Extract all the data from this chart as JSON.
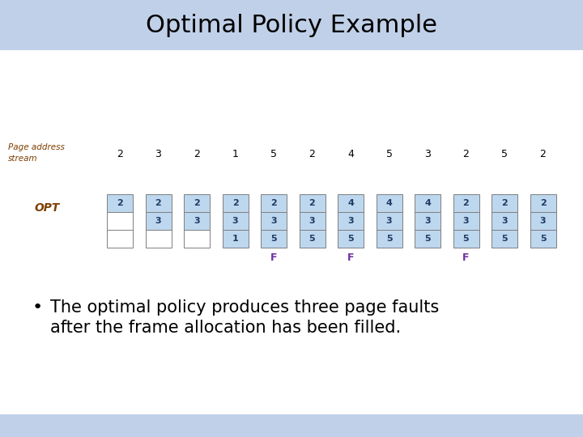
{
  "title": "Optimal Policy Example",
  "title_fontsize": 22,
  "title_color": "#000000",
  "bg_top_color": "#c0d0e8",
  "bg_bottom_color": "#c0d0e8",
  "label_page_address": "Page address",
  "label_stream": "stream",
  "label_opt": "OPT",
  "page_stream": [
    2,
    3,
    2,
    1,
    5,
    2,
    4,
    5,
    3,
    2,
    5,
    2
  ],
  "frames": [
    [
      "2",
      "",
      ""
    ],
    [
      "2",
      "3",
      ""
    ],
    [
      "2",
      "3",
      ""
    ],
    [
      "2",
      "3",
      "1"
    ],
    [
      "2",
      "3",
      "5"
    ],
    [
      "2",
      "3",
      "5"
    ],
    [
      "4",
      "3",
      "5"
    ],
    [
      "4",
      "3",
      "5"
    ],
    [
      "4",
      "3",
      "5"
    ],
    [
      "2",
      "3",
      "5"
    ],
    [
      "2",
      "3",
      "5"
    ],
    [
      "2",
      "3",
      "5"
    ]
  ],
  "fault_cols": [
    4,
    6,
    9
  ],
  "fault_label": "F",
  "fault_color": "#7030a0",
  "cell_fill_color": "#bdd7ee",
  "cell_empty_color": "#ffffff",
  "cell_border_color": "#7f7f7f",
  "stream_label_color": "#7f3f00",
  "stream_value_color": "#000000",
  "opt_label_color": "#7f3f00",
  "cell_text_color": "#1f3864",
  "bullet_fontsize": 15,
  "bullet_text_line1": "The optimal policy produces three page faults",
  "bullet_text_line2": "after the frame allocation has been filled."
}
